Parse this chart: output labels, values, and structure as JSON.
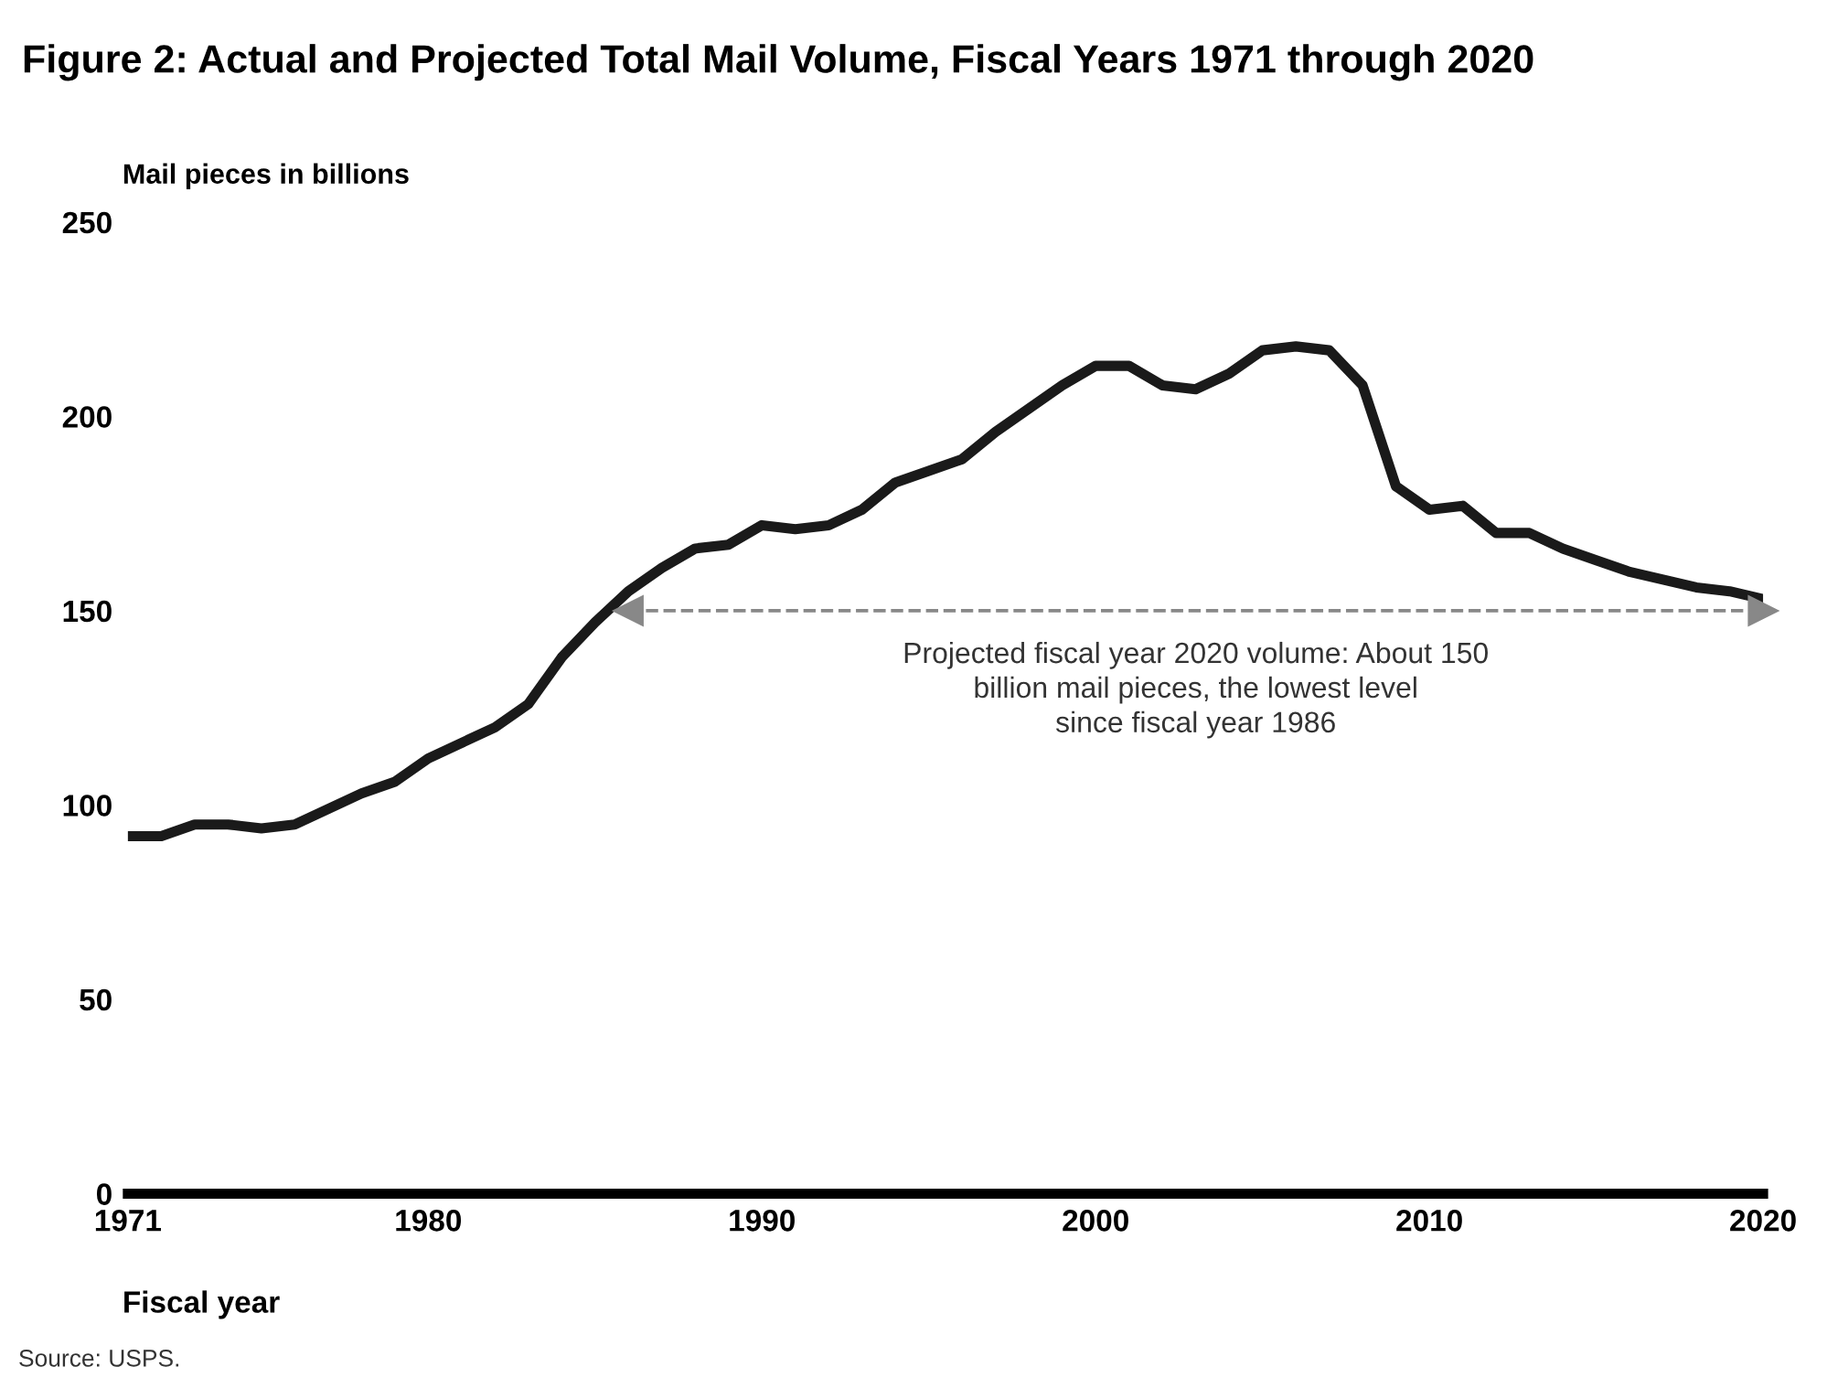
{
  "chart_data": {
    "type": "line",
    "title": "Figure 2: Actual and Projected Total Mail Volume, Fiscal Years 1971 through 2020",
    "ylabel": "Mail pieces in billions",
    "xlabel": "Fiscal year",
    "x": [
      1971,
      1972,
      1973,
      1974,
      1975,
      1976,
      1977,
      1978,
      1979,
      1980,
      1981,
      1982,
      1983,
      1984,
      1985,
      1986,
      1987,
      1988,
      1989,
      1990,
      1991,
      1992,
      1993,
      1994,
      1995,
      1996,
      1997,
      1998,
      1999,
      2000,
      2001,
      2002,
      2003,
      2004,
      2005,
      2006,
      2007,
      2008,
      2009,
      2010,
      2011,
      2012,
      2013,
      2014,
      2015,
      2016,
      2017,
      2018,
      2019,
      2020
    ],
    "series": [
      {
        "color": "#1a1a1a",
        "values": [
          92,
          92,
          95,
          95,
          94,
          95,
          99,
          103,
          106,
          112,
          116,
          120,
          126,
          138,
          147,
          155,
          161,
          166,
          167,
          172,
          171,
          172,
          176,
          183,
          186,
          189,
          196,
          202,
          208,
          213,
          213,
          208,
          207,
          211,
          217,
          218,
          217,
          208,
          182,
          176,
          177,
          170,
          170,
          166,
          163,
          160,
          158,
          156,
          155,
          153
        ]
      }
    ],
    "xlim": [
      1971,
      2020
    ],
    "xticks": [
      1971,
      1980,
      1990,
      2000,
      2010,
      2020
    ],
    "ylim": [
      0,
      250
    ],
    "yticks": [
      0,
      50,
      100,
      150,
      200,
      250
    ],
    "grid": false,
    "legend": false,
    "marker": "none",
    "line_style": "solid",
    "ref_lines": [
      {
        "axis": "y",
        "value": 150,
        "label": "Projected fiscal year 2020 volume: About 150\nbillion mail pieces, the lowest level\nsince fiscal year 1986",
        "color": "#888888",
        "line_style": "dashed"
      }
    ],
    "annotations": [
      "Source: USPS."
    ]
  }
}
